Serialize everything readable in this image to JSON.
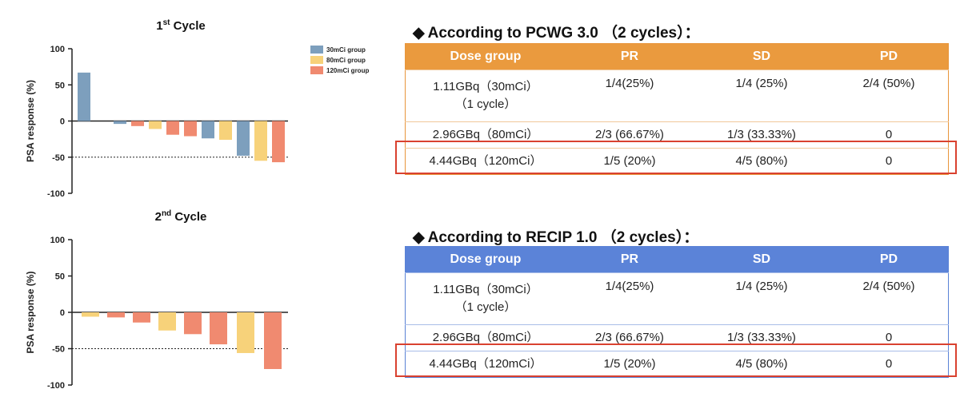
{
  "chart_data": [
    {
      "type": "bar",
      "title": "1st Cycle",
      "ylabel": "PSA response (%)",
      "ylim": [
        -100,
        100
      ],
      "yticks": [
        100,
        50,
        0,
        -50,
        -100
      ],
      "reference_line": -50,
      "legend": [
        "30mCi group",
        "80mCi group",
        "120mCi group"
      ],
      "legend_position": "top-right",
      "bars": [
        {
          "value": 67,
          "group": "30mCi group"
        },
        {
          "value": -4,
          "group": "30mCi group"
        },
        {
          "value": -7,
          "group": "120mCi group"
        },
        {
          "value": -11,
          "group": "80mCi group"
        },
        {
          "value": -19,
          "group": "120mCi group"
        },
        {
          "value": -21,
          "group": "120mCi group"
        },
        {
          "value": -24,
          "group": "30mCi group"
        },
        {
          "value": -26,
          "group": "80mCi group"
        },
        {
          "value": -48,
          "group": "30mCi group"
        },
        {
          "value": -55,
          "group": "80mCi group"
        },
        {
          "value": -57,
          "group": "120mCi group"
        }
      ]
    },
    {
      "type": "bar",
      "title": "2nd Cycle",
      "ylabel": "PSA response (%)",
      "ylim": [
        -100,
        100
      ],
      "yticks": [
        100,
        50,
        0,
        -50,
        -100
      ],
      "reference_line": -50,
      "bars": [
        {
          "value": -6,
          "group": "80mCi group"
        },
        {
          "value": -7,
          "group": "120mCi group"
        },
        {
          "value": -14,
          "group": "120mCi group"
        },
        {
          "value": -25,
          "group": "80mCi group"
        },
        {
          "value": -30,
          "group": "120mCi group"
        },
        {
          "value": -44,
          "group": "120mCi group"
        },
        {
          "value": -56,
          "group": "80mCi group"
        },
        {
          "value": -78,
          "group": "120mCi group"
        }
      ]
    }
  ],
  "colors": {
    "30mCi group": "#7d9fbd",
    "80mCi group": "#f7d27a",
    "120mCi group": "#f08a70",
    "pcwg_header": "#ea9a3e",
    "recip_header": "#5b83d8",
    "highlight": "#d9412f"
  },
  "pcwg": {
    "bullet": "◆",
    "title": "According to PCWG 3.0 （2 cycles）：",
    "headers": [
      "Dose group",
      "PR",
      "SD",
      "PD"
    ],
    "rows": [
      [
        "1.11GBq（30mCi）",
        "（1 cycle）",
        "1/4(25%)",
        "1/4 (25%)",
        "2/4 (50%)"
      ],
      [
        "2.96GBq（80mCi）",
        "",
        "2/3 (66.67%)",
        "1/3 (33.33%)",
        "0"
      ],
      [
        "4.44GBq（120mCi）",
        "",
        "1/5 (20%)",
        "4/5 (80%)",
        "0"
      ]
    ]
  },
  "recip": {
    "bullet": "◆",
    "title": "According to RECIP 1.0 （2 cycles）：",
    "headers": [
      "Dose group",
      "PR",
      "SD",
      "PD"
    ],
    "rows": [
      [
        "1.11GBq（30mCi）",
        "（1 cycle）",
        "1/4(25%)",
        "1/4 (25%)",
        "2/4 (50%)"
      ],
      [
        "2.96GBq（80mCi）",
        "",
        "2/3 (66.67%)",
        "1/3 (33.33%)",
        "0"
      ],
      [
        "4.44GBq（120mCi）",
        "",
        "1/5 (20%)",
        "4/5 (80%)",
        "0"
      ]
    ]
  }
}
